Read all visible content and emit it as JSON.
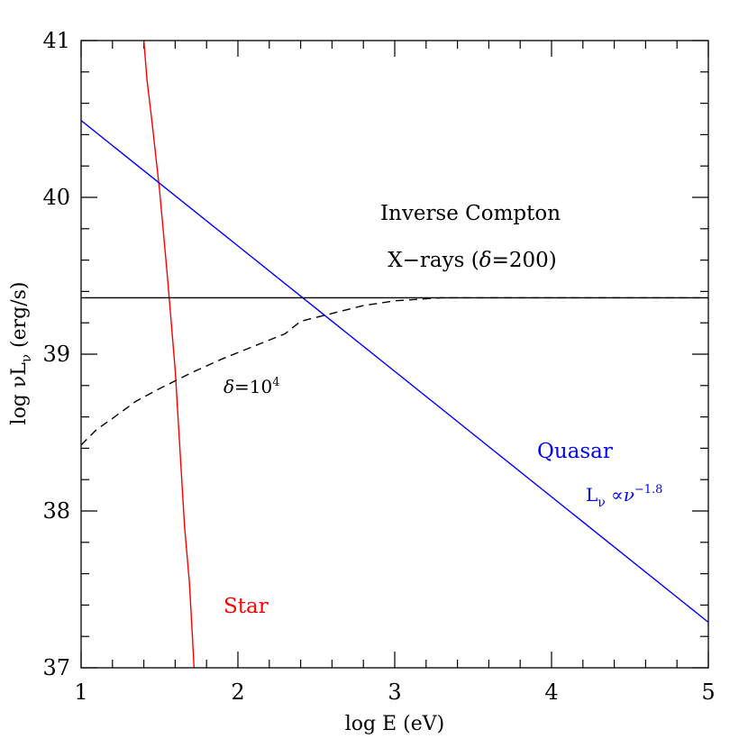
{
  "chart_data": {
    "type": "line",
    "xlabel": "log E (eV)",
    "ylabel": "log νL_ν (erg/s)",
    "xlim": [
      1,
      5
    ],
    "ylim": [
      37,
      41
    ],
    "xticks": [
      "1",
      "2",
      "3",
      "4",
      "5"
    ],
    "yticks": [
      "37",
      "38",
      "39",
      "40",
      "41"
    ],
    "grid": false,
    "series": [
      {
        "name": "Star",
        "color": "#ff0000",
        "dash": "solid",
        "x": [
          1.4,
          1.42,
          1.45,
          1.5,
          1.55,
          1.6,
          1.63,
          1.66,
          1.69,
          1.71,
          1.72
        ],
        "y": [
          41.0,
          40.75,
          40.5,
          40.05,
          39.5,
          38.9,
          38.4,
          37.9,
          37.55,
          37.2,
          37.0
        ]
      },
      {
        "name": "Quasar",
        "color": "#0000ff",
        "dash": "solid",
        "x": [
          1.0,
          5.0
        ],
        "y": [
          40.49,
          37.29
        ]
      },
      {
        "name": "Inverse Compton X-rays (δ=200)",
        "color": "#000000",
        "dash": "solid",
        "x": [
          1.0,
          5.0
        ],
        "y": [
          39.36,
          39.36
        ]
      },
      {
        "name": "δ=10⁴",
        "color": "#000000",
        "dash": "dashed",
        "x": [
          1.0,
          1.1,
          1.2,
          1.35,
          1.5,
          1.7,
          1.9,
          2.1,
          2.3,
          2.4,
          2.6,
          2.8,
          3.0,
          3.3,
          3.6,
          4.0,
          5.0
        ],
        "y": [
          38.42,
          38.52,
          38.59,
          38.7,
          38.78,
          38.88,
          38.97,
          39.05,
          39.13,
          39.21,
          39.26,
          39.31,
          39.34,
          39.36,
          39.36,
          39.36,
          39.36
        ]
      }
    ],
    "annotations": {
      "ic_line1": "Inverse Compton",
      "ic_line2": "X-rays (δ=200)",
      "dashed_label": "δ=10⁴",
      "quasar_label": "Quasar",
      "quasar_law": "L_ν ∝ν^−1.8",
      "star_label": "Star"
    }
  }
}
